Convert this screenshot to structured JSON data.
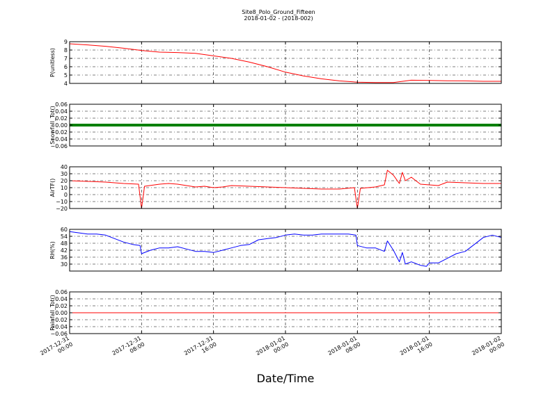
{
  "figure": {
    "title": "Site8_Polo_Ground_Fifteen",
    "subtitle": "2018-01-02 - (2018-002)",
    "xlabel": "Date/Time"
  },
  "chart_data": [
    {
      "type": "line",
      "ylabel": "P(unitless)",
      "xlim": [
        "2017-12-31 00:00",
        "2018-01-02 00:00"
      ],
      "ylim": [
        4,
        9
      ],
      "yticks": [
        4,
        5,
        6,
        7,
        8,
        9
      ],
      "ytick_labels": [
        "4",
        "5",
        "6",
        "7",
        "8",
        "9"
      ],
      "grid": true,
      "series": [
        {
          "color": "#ff0000",
          "x": [
            "2017-12-31 00:00",
            "2017-12-31 02:00",
            "2017-12-31 04:00",
            "2017-12-31 06:00",
            "2017-12-31 08:00",
            "2017-12-31 10:00",
            "2017-12-31 12:00",
            "2017-12-31 14:00",
            "2017-12-31 16:00",
            "2017-12-31 18:00",
            "2017-12-31 20:00",
            "2017-12-31 22:00",
            "2018-01-01 00:00",
            "2018-01-01 02:00",
            "2018-01-01 04:00",
            "2018-01-01 06:00",
            "2018-01-01 08:00",
            "2018-01-01 10:00",
            "2018-01-01 12:00",
            "2018-01-01 14:00",
            "2018-01-01 16:00",
            "2018-01-01 18:00",
            "2018-01-01 20:00",
            "2018-01-01 22:00",
            "2018-01-02 00:00"
          ],
          "values": [
            8.75,
            8.62,
            8.45,
            8.22,
            7.95,
            7.75,
            7.7,
            7.6,
            7.3,
            7.0,
            6.55,
            6.0,
            5.35,
            4.9,
            4.55,
            4.3,
            4.15,
            4.1,
            4.1,
            4.38,
            4.35,
            4.32,
            4.3,
            4.25,
            4.25
          ]
        }
      ]
    },
    {
      "type": "line",
      "ylabel": "Snowfall_Tot()",
      "xlim": [
        "2017-12-31 00:00",
        "2018-01-02 00:00"
      ],
      "ylim": [
        -0.06,
        0.06
      ],
      "yticks": [
        -0.06,
        -0.04,
        -0.02,
        0.0,
        0.02,
        0.04,
        0.06
      ],
      "ytick_labels": [
        "−0.06",
        "−0.04",
        "−0.02",
        "0.00",
        "0.02",
        "0.04",
        "0.06"
      ],
      "grid": true,
      "series": [
        {
          "color": "#008000",
          "thick": true,
          "x": [
            "2017-12-31 00:00",
            "2018-01-02 00:00"
          ],
          "values": [
            0,
            0
          ]
        }
      ]
    },
    {
      "type": "line",
      "ylabel": "AirTF()",
      "xlim": [
        "2017-12-31 00:00",
        "2018-01-02 00:00"
      ],
      "ylim": [
        -20,
        40
      ],
      "yticks": [
        -20,
        -10,
        0,
        10,
        20,
        30,
        40
      ],
      "ytick_labels": [
        "−20",
        "−10",
        "0",
        "10",
        "20",
        "30",
        "40"
      ],
      "grid": true,
      "series": [
        {
          "color": "#ff0000",
          "x": [
            "2017-12-31 00:00",
            "2017-12-31 02:00",
            "2017-12-31 04:00",
            "2017-12-31 06:00",
            "2017-12-31 07:40",
            "2017-12-31 08:00",
            "2017-12-31 08:20",
            "2017-12-31 10:00",
            "2017-12-31 11:00",
            "2017-12-31 12:00",
            "2017-12-31 14:00",
            "2017-12-31 15:00",
            "2017-12-31 16:00",
            "2017-12-31 17:00",
            "2017-12-31 18:00",
            "2017-12-31 20:00",
            "2017-12-31 22:00",
            "2018-01-01 00:00",
            "2018-01-01 02:00",
            "2018-01-01 04:00",
            "2018-01-01 06:00",
            "2018-01-01 07:40",
            "2018-01-01 08:00",
            "2018-01-01 08:20",
            "2018-01-01 10:00",
            "2018-01-01 11:00",
            "2018-01-01 11:20",
            "2018-01-01 12:00",
            "2018-01-01 12:40",
            "2018-01-01 13:00",
            "2018-01-01 13:20",
            "2018-01-01 14:00",
            "2018-01-01 15:00",
            "2018-01-01 16:00",
            "2018-01-01 17:00",
            "2018-01-01 18:00",
            "2018-01-01 20:00",
            "2018-01-01 22:00",
            "2018-01-02 00:00"
          ],
          "values": [
            20,
            19,
            18,
            16,
            15,
            -20,
            12,
            15,
            16,
            15,
            11,
            12,
            10,
            11,
            13,
            12,
            11,
            10,
            9,
            8,
            8,
            10,
            -20,
            9,
            11,
            14,
            35,
            28,
            16,
            32,
            20,
            25,
            15,
            14,
            13,
            18,
            17,
            16,
            16
          ]
        }
      ]
    },
    {
      "type": "line",
      "ylabel": "RH(%)",
      "xlim": [
        "2017-12-31 00:00",
        "2018-01-02 00:00"
      ],
      "ylim": [
        24,
        60
      ],
      "yticks": [
        30,
        36,
        42,
        48,
        54,
        60
      ],
      "ytick_labels": [
        "30",
        "36",
        "42",
        "48",
        "54",
        "60"
      ],
      "grid": true,
      "series": [
        {
          "color": "#0000ff",
          "x": [
            "2017-12-31 00:00",
            "2017-12-31 01:00",
            "2017-12-31 02:00",
            "2017-12-31 03:00",
            "2017-12-31 04:00",
            "2017-12-31 05:00",
            "2017-12-31 06:00",
            "2017-12-31 07:00",
            "2017-12-31 07:50",
            "2017-12-31 08:00",
            "2017-12-31 09:00",
            "2017-12-31 10:00",
            "2017-12-31 11:00",
            "2017-12-31 12:00",
            "2017-12-31 13:00",
            "2017-12-31 14:00",
            "2017-12-31 15:00",
            "2017-12-31 16:00",
            "2017-12-31 17:00",
            "2017-12-31 18:00",
            "2017-12-31 19:00",
            "2017-12-31 20:00",
            "2017-12-31 21:00",
            "2017-12-31 22:00",
            "2017-12-31 23:00",
            "2018-01-01 00:00",
            "2018-01-01 01:00",
            "2018-01-01 02:00",
            "2018-01-01 03:00",
            "2018-01-01 04:00",
            "2018-01-01 05:00",
            "2018-01-01 06:00",
            "2018-01-01 07:00",
            "2018-01-01 07:50",
            "2018-01-01 08:00",
            "2018-01-01 09:00",
            "2018-01-01 10:00",
            "2018-01-01 11:00",
            "2018-01-01 11:20",
            "2018-01-01 12:00",
            "2018-01-01 12:40",
            "2018-01-01 13:00",
            "2018-01-01 13:20",
            "2018-01-01 14:00",
            "2018-01-01 15:00",
            "2018-01-01 15:40",
            "2018-01-01 16:00",
            "2018-01-01 17:00",
            "2018-01-01 18:00",
            "2018-01-01 19:00",
            "2018-01-01 20:00",
            "2018-01-01 21:00",
            "2018-01-01 22:00",
            "2018-01-01 23:00",
            "2018-01-02 00:00"
          ],
          "values": [
            58,
            57,
            56,
            56,
            55,
            52,
            49,
            47,
            46,
            39,
            42,
            44,
            44,
            45,
            43,
            41,
            41,
            40,
            42,
            44,
            46,
            47,
            51,
            52,
            53,
            55,
            56,
            55,
            55,
            56,
            56,
            56,
            56,
            55,
            46,
            44,
            44,
            41,
            50,
            42,
            32,
            40,
            30,
            32,
            29,
            28,
            31,
            31,
            35,
            39,
            41,
            47,
            53,
            55,
            53
          ]
        }
      ]
    },
    {
      "type": "line",
      "ylabel": "Rainfall_Tot()",
      "xlim": [
        "2017-12-31 00:00",
        "2018-01-02 00:00"
      ],
      "ylim": [
        -0.06,
        0.06
      ],
      "yticks": [
        -0.06,
        -0.04,
        -0.02,
        0.0,
        0.02,
        0.04,
        0.06
      ],
      "ytick_labels": [
        "−0.06",
        "−0.04",
        "−0.02",
        "0.00",
        "0.02",
        "0.04",
        "0.06"
      ],
      "grid": true,
      "series": [
        {
          "color": "#ff0000",
          "x": [
            "2017-12-31 00:00",
            "2018-01-02 00:00"
          ],
          "values": [
            0,
            0
          ]
        }
      ]
    }
  ],
  "xaxis": {
    "ticks": [
      "2017-12-31 00:00",
      "2017-12-31 08:00",
      "2017-12-31 16:00",
      "2018-01-01 00:00",
      "2018-01-01 08:00",
      "2018-01-01 16:00",
      "2018-01-02 00:00"
    ],
    "tick_labels": [
      [
        "2017-12-31",
        "00:00"
      ],
      [
        "2017-12-31",
        "08:00"
      ],
      [
        "2017-12-31",
        "16:00"
      ],
      [
        "2018-01-01",
        "00:00"
      ],
      [
        "2018-01-01",
        "08:00"
      ],
      [
        "2018-01-01",
        "16:00"
      ],
      [
        "2018-01-02",
        "00:00"
      ]
    ]
  }
}
